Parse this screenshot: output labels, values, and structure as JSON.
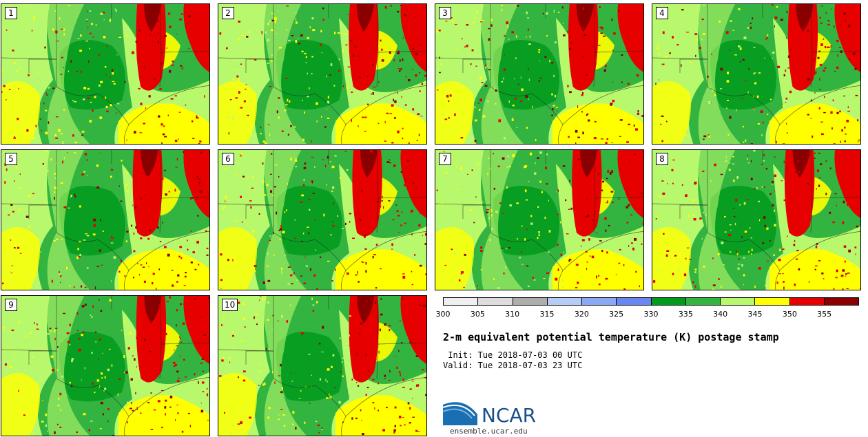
{
  "map_title": "2-m equivalent potential temperature (K) postage stamp",
  "init_label": " Init: Tue 2018-07-03 00 UTC",
  "valid_label": "Valid: Tue 2018-07-03 23 UTC",
  "members": [
    "1",
    "2",
    "3",
    "4",
    "5",
    "6",
    "7",
    "8",
    "9",
    "10"
  ],
  "colorbar": {
    "bins": [
      {
        "from": 300,
        "to": 305,
        "color": "#efefef"
      },
      {
        "from": 305,
        "to": 310,
        "color": "#dcdcdc"
      },
      {
        "from": 310,
        "to": 315,
        "color": "#adadad"
      },
      {
        "from": 315,
        "to": 320,
        "color": "#b6cbf6"
      },
      {
        "from": 320,
        "to": 325,
        "color": "#8ba8f4"
      },
      {
        "from": 325,
        "to": 330,
        "color": "#6a86f2"
      },
      {
        "from": 330,
        "to": 335,
        "color": "#009a1c"
      },
      {
        "from": 335,
        "to": 340,
        "color": "#33b440"
      },
      {
        "from": 340,
        "to": 345,
        "color": "#b8f86c"
      },
      {
        "from": 345,
        "to": 350,
        "color": "#ffff00"
      },
      {
        "from": 350,
        "to": 355,
        "color": "#e60000"
      },
      {
        "from": 355,
        "to": 360,
        "color": "#8a0000"
      }
    ],
    "tick_labels": [
      "300",
      "305",
      "310",
      "315",
      "320",
      "325",
      "330",
      "335",
      "340",
      "345",
      "350",
      "355"
    ]
  },
  "logo_text": "NCAR",
  "website": "ensemble.ucar.edu",
  "colors": {
    "green_dark": "#009a1c",
    "green": "#33b440",
    "green_light": "#b8f86c",
    "yellow": "#ffff00",
    "red": "#e60000",
    "dark_red": "#8a0000",
    "ncar_blue": "#1a4f8a"
  }
}
